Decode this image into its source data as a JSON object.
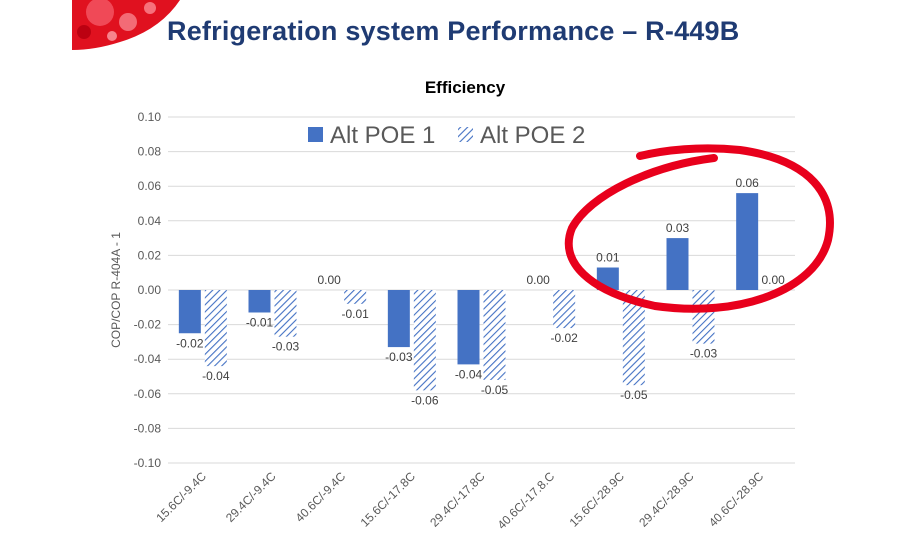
{
  "slide": {
    "title": "Refrigeration system Performance – R-449B",
    "accent_color": "#e8001c",
    "title_color": "#1f3b73"
  },
  "chart_data": {
    "type": "bar",
    "title": "Efficiency",
    "xlabel": "",
    "ylabel": "COP/COP R-404A - 1",
    "ylim": [
      -0.1,
      0.1
    ],
    "ytick_step": 0.02,
    "grid": true,
    "legend_position": "top-center",
    "categories": [
      "15.6C/-9.4C",
      "29.4C/-9.4C",
      "40.6C/-9.4C",
      "15.6C/-17.8C",
      "29.4C/-17.8C",
      "40.6C/-17.8.C",
      "15.6C/-28.9C",
      "29.4C/-28.9C",
      "40.6C/-28.9C"
    ],
    "series": [
      {
        "name": "Alt POE 1",
        "style": "solid",
        "color": "#4472c4",
        "values": [
          -0.025,
          -0.013,
          0.0,
          -0.033,
          -0.043,
          0.0,
          0.013,
          0.03,
          0.056
        ],
        "labels": [
          "-0.02",
          "-0.01",
          "0.00",
          "-0.03",
          "-0.04",
          "0.00",
          "0.01",
          "0.03",
          "0.06"
        ]
      },
      {
        "name": "Alt POE 2",
        "style": "hatched",
        "color": "#4472c4",
        "values": [
          -0.044,
          -0.027,
          -0.008,
          -0.058,
          -0.052,
          -0.022,
          -0.055,
          -0.031,
          0.0
        ],
        "labels": [
          "-0.04",
          "-0.03",
          "-0.01",
          "-0.06",
          "-0.05",
          "-0.02",
          "-0.05",
          "-0.03",
          "0.00"
        ]
      }
    ],
    "annotation": {
      "shape": "ellipse",
      "color": "#e8001c",
      "highlights": [
        "15.6C/-28.9C",
        "29.4C/-28.9C",
        "40.6C/-28.9C"
      ]
    }
  }
}
